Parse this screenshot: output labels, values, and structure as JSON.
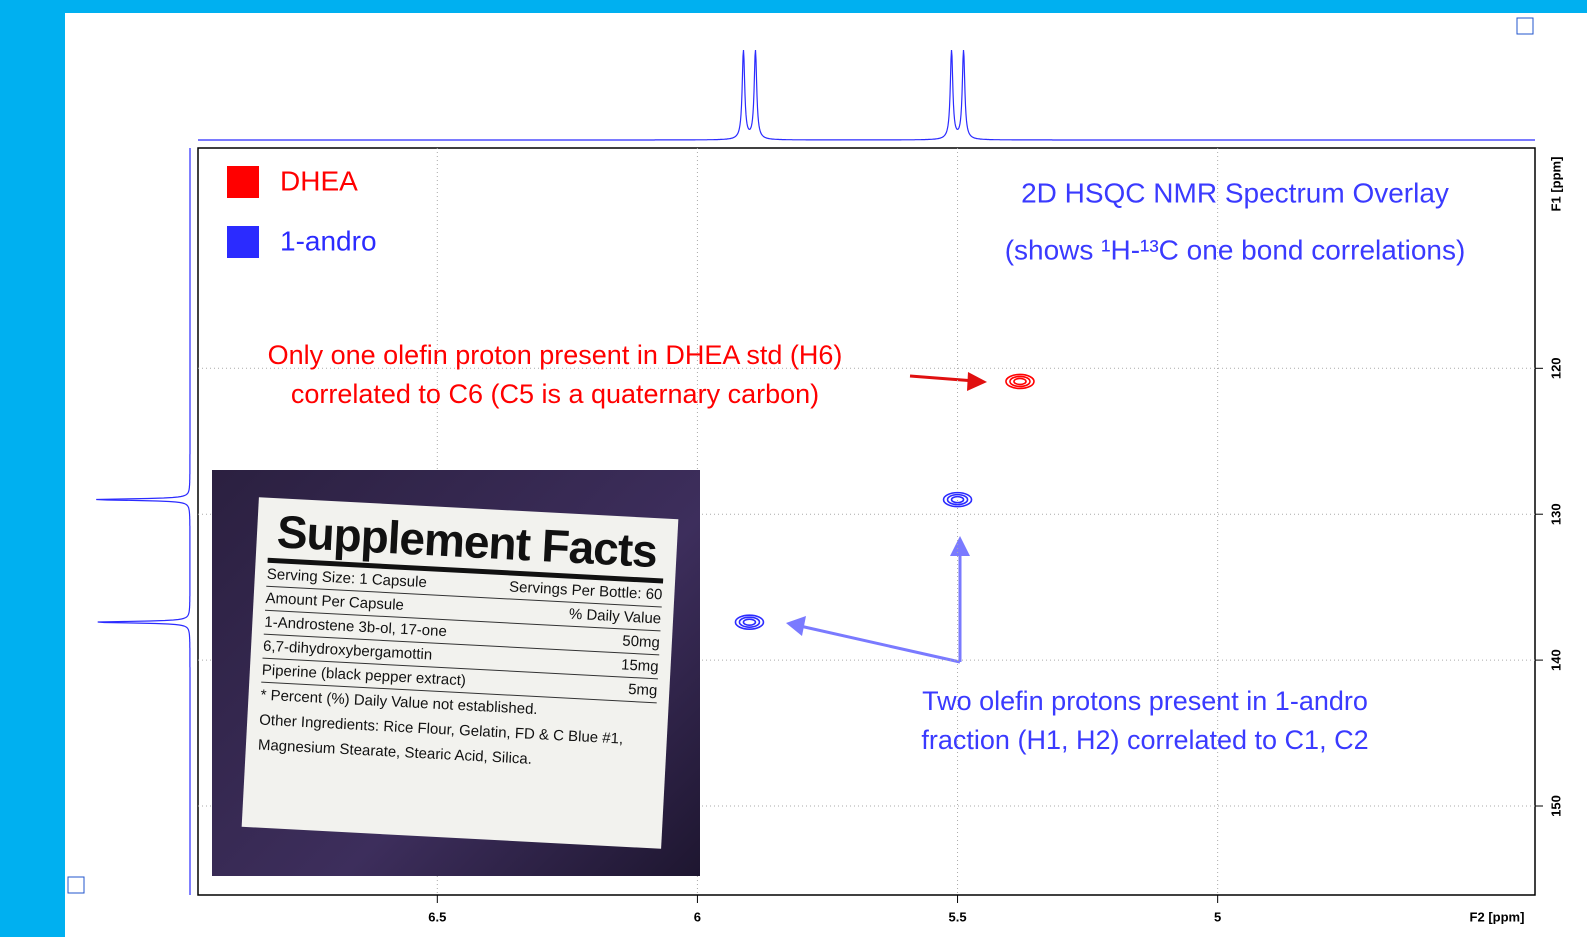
{
  "chart_data": {
    "type": "scatter",
    "title": "2D HSQC NMR Spectrum Overlay",
    "subtitle": "(shows ¹H-¹³C one bond correlations)",
    "x_label": "F2 [ppm]",
    "y_label": "F1 [ppm]",
    "xlim": [
      6.96,
      4.39
    ],
    "ylim": [
      104.9,
      156.1
    ],
    "xticks": [
      6.5,
      6.0,
      5.5,
      5.0
    ],
    "yticks": [
      120,
      130,
      140,
      150
    ],
    "grid": true,
    "legend": "top-left",
    "series": [
      {
        "name": "DHEA",
        "color": "#ff0000",
        "x": [
          5.38
        ],
        "values": [
          120.9
        ]
      },
      {
        "name": "1-andro",
        "color": "#2b2bff",
        "x": [
          5.5,
          5.9
        ],
        "values": [
          129.0,
          137.4
        ]
      }
    ],
    "annotations": [
      {
        "color": "#ff0000",
        "lines": [
          "Only one olefin proton present in DHEA std (H6)",
          "correlated to C6 (C5 is a quaternary carbon)"
        ]
      },
      {
        "color": "#3a3aff",
        "lines": [
          "Two olefin protons present in 1-andro",
          "fraction (H1, H2) correlated to C1, C2"
        ]
      }
    ]
  },
  "inset": {
    "title": "Supplement Facts",
    "rows": [
      [
        "Serving Size: 1 Capsule",
        "Servings Per Bottle: 60"
      ],
      [
        "Amount Per Capsule",
        "% Daily Value"
      ],
      [
        "1-Androstene 3b-ol, 17-one",
        "50mg"
      ],
      [
        "6,7-dihydroxybergamottin",
        "15mg"
      ],
      [
        "Piperine (black pepper extract)",
        "5mg"
      ]
    ],
    "notes": [
      "* Percent (%) Daily Value not established.",
      "Other Ingredients: Rice Flour, Gelatin, FD & C Blue #1,",
      "Magnesium Stearate, Stearic Acid, Silica."
    ]
  }
}
